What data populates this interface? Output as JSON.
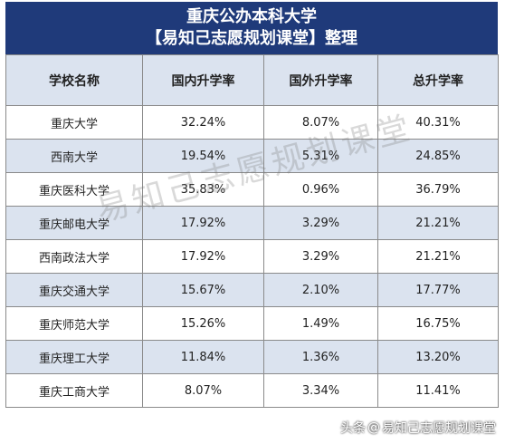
{
  "title": {
    "line1": "重庆公办本科大学",
    "line2": "【易知己志愿规划课堂】整理"
  },
  "table": {
    "headers": [
      "学校名称",
      "国内升学率",
      "国外升学率",
      "总升学率"
    ],
    "rows": [
      [
        "重庆大学",
        "32.24%",
        "8.07%",
        "40.31%"
      ],
      [
        "西南大学",
        "19.54%",
        "5.31%",
        "24.85%"
      ],
      [
        "重庆医科大学",
        "35.83%",
        "0.96%",
        "36.79%"
      ],
      [
        "重庆邮电大学",
        "17.92%",
        "3.29%",
        "21.21%"
      ],
      [
        "西南政法大学",
        "17.92%",
        "3.29%",
        "21.21%"
      ],
      [
        "重庆交通大学",
        "15.67%",
        "2.10%",
        "17.77%"
      ],
      [
        "重庆师范大学",
        "15.26%",
        "1.49%",
        "16.75%"
      ],
      [
        "重庆理工大学",
        "11.84%",
        "1.36%",
        "13.20%"
      ],
      [
        "重庆工商大学",
        "8.07%",
        "3.34%",
        "11.41%"
      ]
    ]
  },
  "watermark": "易知己志愿规划课堂",
  "credit": {
    "prefix": "头条",
    "handle": "易知己志愿规划课堂"
  },
  "colors": {
    "title_bg": "#1f3a7a",
    "stripe_bg": "#dbe3ef"
  }
}
